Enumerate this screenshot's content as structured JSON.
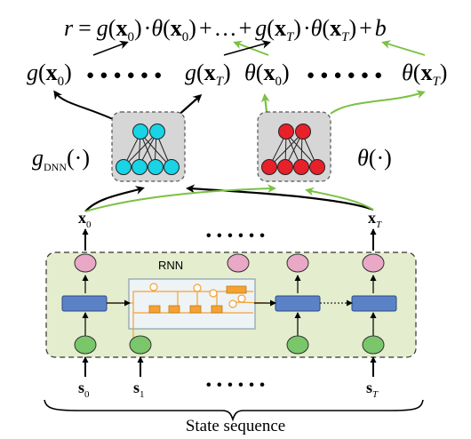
{
  "equation": {
    "lhs": "r",
    "eq": "=",
    "g": "g",
    "theta": "θ",
    "x": "x",
    "sub0": "0",
    "subT": "T",
    "dot": "·",
    "plus": "+",
    "ellipsis": "…",
    "b": "b"
  },
  "outputs": {
    "g_x0_g": "g",
    "g_xT_g": "g",
    "theta_x0": "θ",
    "theta_xT": "θ",
    "x": "x",
    "sub0": "0",
    "subT": "T",
    "dots": "● ● ● ● ● ●"
  },
  "modules": {
    "gdnn_g": "g",
    "gdnn_sub": "DNN",
    "gdnn_arg": "(·)",
    "theta_sym": "θ",
    "theta_arg": "(·)"
  },
  "rnn": {
    "label": "RNN",
    "x0_x": "x",
    "x0_sub": "0",
    "xT_x": "x",
    "xT_sub": "T",
    "middle_dots": "• • • • • •"
  },
  "inputs": {
    "s": "s",
    "s0_sub": "0",
    "s1_sub": "1",
    "sT_sub": "T",
    "middle_dots": "• • • • • •"
  },
  "footer": {
    "caption": "State sequence"
  },
  "colors": {
    "cyan_node": "#19d3e6",
    "red_node": "#e8202a",
    "module_bg": "#d6d6d6",
    "rnn_bg": "#e4edce",
    "hidden_box": "#5b82c6",
    "input_node": "#7ac66a",
    "output_node": "#e8a8c6",
    "green_arrow": "#7ac143",
    "orange_cell": "#f4a233"
  }
}
